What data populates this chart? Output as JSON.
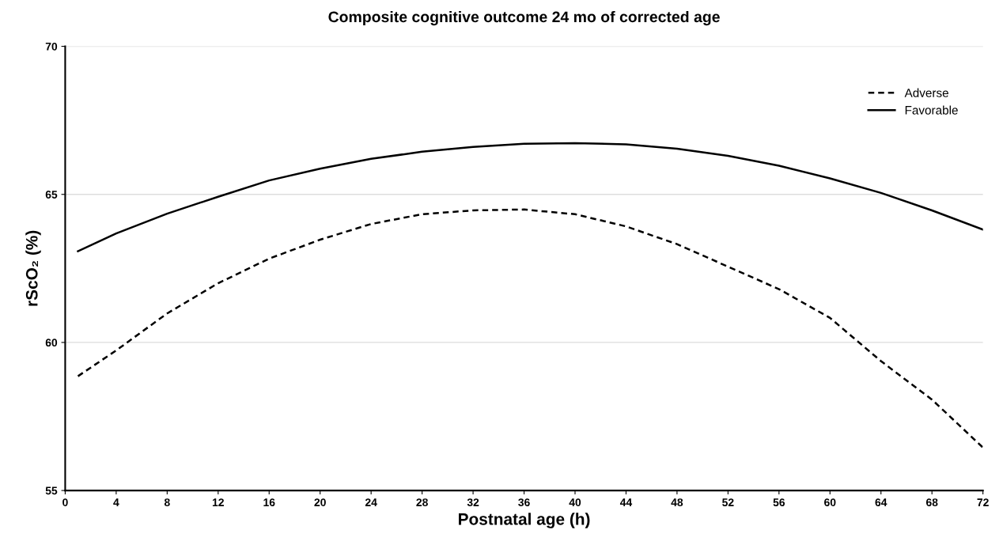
{
  "chart_data": {
    "type": "line",
    "title": "Composite cognitive outcome 24 mo of corrected age",
    "xlabel": "Postnatal age (h)",
    "ylabel": "rScO₂ (%)",
    "x": [
      1,
      4,
      8,
      12,
      16,
      20,
      24,
      28,
      32,
      36,
      40,
      44,
      48,
      52,
      56,
      60,
      64,
      68,
      72
    ],
    "series": [
      {
        "name": "Adverse",
        "color": "#000000",
        "line_style": "dashed",
        "values": [
          58.86,
          59.73,
          60.98,
          62.0,
          62.83,
          63.47,
          64.0,
          64.33,
          64.46,
          64.49,
          64.33,
          63.92,
          63.32,
          62.56,
          61.8,
          60.83,
          59.37,
          58.07,
          56.45
        ]
      },
      {
        "name": "Favorable",
        "color": "#000000",
        "line_style": "solid",
        "values": [
          63.08,
          63.68,
          64.35,
          64.92,
          65.47,
          65.87,
          66.2,
          66.44,
          66.6,
          66.71,
          66.73,
          66.69,
          66.54,
          66.3,
          65.97,
          65.54,
          65.05,
          64.46,
          63.81
        ]
      }
    ],
    "xlim": [
      0,
      72
    ],
    "xticks": [
      0,
      4,
      8,
      12,
      16,
      20,
      24,
      28,
      32,
      36,
      40,
      44,
      48,
      52,
      56,
      60,
      64,
      68,
      72
    ],
    "ylim": [
      55,
      70
    ],
    "yticks": [
      55,
      60,
      65,
      70
    ],
    "grid": "y",
    "legend": "top right",
    "marker": "none"
  }
}
